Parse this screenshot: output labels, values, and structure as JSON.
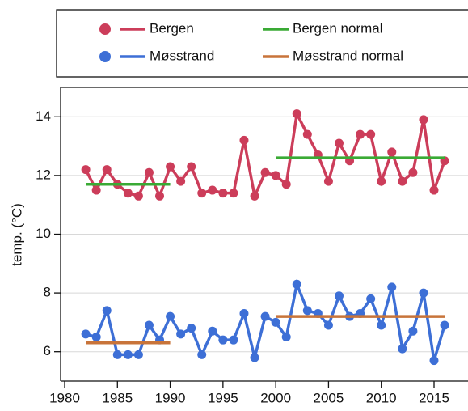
{
  "chart_data": {
    "type": "line",
    "y_label": "temp. (°C)",
    "xlim": [
      1980,
      2018
    ],
    "xticks": [
      1980,
      1985,
      1990,
      1995,
      2000,
      2005,
      2010,
      2015
    ],
    "ylim": [
      5,
      15
    ],
    "yticks": [
      6,
      8,
      10,
      12,
      14
    ],
    "grid": true,
    "series": [
      {
        "name": "Bergen",
        "color": "#cc3d5a",
        "markers": true,
        "x": [
          1982,
          1983,
          1984,
          1985,
          1986,
          1987,
          1988,
          1989,
          1990,
          1991,
          1992,
          1993,
          1994,
          1995,
          1996,
          1997,
          1998,
          1999,
          2000,
          2001,
          2002,
          2003,
          2004,
          2005,
          2006,
          2007,
          2008,
          2009,
          2010,
          2011,
          2012,
          2013,
          2014,
          2015,
          2016
        ],
        "values": [
          12.2,
          11.5,
          12.2,
          11.7,
          11.4,
          11.3,
          12.1,
          11.3,
          12.3,
          11.8,
          12.3,
          11.4,
          11.5,
          11.4,
          11.4,
          13.2,
          11.3,
          12.1,
          12.0,
          11.7,
          14.1,
          13.4,
          12.7,
          11.8,
          13.1,
          12.5,
          13.4,
          13.4,
          11.8,
          12.8,
          11.8,
          12.1,
          13.9,
          11.5,
          12.5
        ]
      },
      {
        "name": "Bergen normal",
        "color": "#3aaa35",
        "markers": false,
        "x": [
          1982,
          1990,
          1995,
          2000,
          2016
        ],
        "values": [
          11.7,
          11.7,
          null,
          12.6,
          12.6
        ]
      },
      {
        "name": "Møsstrand",
        "color": "#3d6fd6",
        "markers": true,
        "x": [
          1982,
          1983,
          1984,
          1985,
          1986,
          1987,
          1988,
          1989,
          1990,
          1991,
          1992,
          1993,
          1994,
          1995,
          1996,
          1997,
          1998,
          1999,
          2000,
          2001,
          2002,
          2003,
          2004,
          2005,
          2006,
          2007,
          2008,
          2009,
          2010,
          2011,
          2012,
          2013,
          2014,
          2015,
          2016
        ],
        "values": [
          6.6,
          6.5,
          7.4,
          5.9,
          5.9,
          5.9,
          6.9,
          6.4,
          7.2,
          6.6,
          6.8,
          5.9,
          6.7,
          6.4,
          6.4,
          7.3,
          5.8,
          7.2,
          7.0,
          6.5,
          8.3,
          7.4,
          7.3,
          6.9,
          7.9,
          7.2,
          7.3,
          7.8,
          6.9,
          8.2,
          6.1,
          6.7,
          8.0,
          5.7,
          6.9
        ]
      },
      {
        "name": "Møsstrand normal",
        "color": "#c8743a",
        "markers": false,
        "x": [
          1982,
          1990,
          1995,
          2000,
          2016
        ],
        "values": [
          6.3,
          6.3,
          null,
          7.2,
          7.2
        ]
      }
    ]
  }
}
